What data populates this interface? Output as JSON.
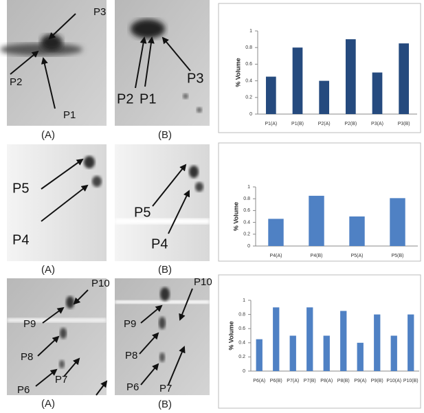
{
  "chart_data": [
    {
      "type": "bar",
      "y_label": "% Volume",
      "categories": [
        "P1(A)",
        "P1(B)",
        "P2(A)",
        "P2(B)",
        "P3(A)",
        "P3(B)"
      ],
      "values": [
        0.45,
        0.8,
        0.4,
        0.9,
        0.5,
        0.85
      ],
      "color": "#254a7e",
      "ylim": [
        0,
        1
      ],
      "yticks": [
        0,
        0.2,
        0.4,
        0.6,
        0.8,
        1
      ]
    },
    {
      "type": "bar",
      "y_label": "% Volume",
      "categories": [
        "P4(A)",
        "P4(B)",
        "P5(A)",
        "P5(B)"
      ],
      "values": [
        0.46,
        0.85,
        0.5,
        0.81
      ],
      "color": "#4f81c4",
      "ylim": [
        0,
        1
      ],
      "yticks": [
        0,
        0.2,
        0.4,
        0.6,
        0.8,
        1
      ]
    },
    {
      "type": "bar",
      "y_label": "% Volume",
      "categories": [
        "P6(A)",
        "P6(B)",
        "P7(A)",
        "P7(B)",
        "P8(A)",
        "P8(B)",
        "P9(A)",
        "P9(B)",
        "P10(A)",
        "P10(B)"
      ],
      "values": [
        0.45,
        0.9,
        0.5,
        0.9,
        0.5,
        0.85,
        0.4,
        0.8,
        0.5,
        0.8
      ],
      "color": "#4f81c4",
      "ylim": [
        0,
        1
      ],
      "yticks": [
        0,
        0.2,
        0.4,
        0.6,
        0.8,
        1
      ]
    }
  ],
  "gels": [
    {
      "labels_a": [
        "P3",
        "P2",
        "P1"
      ],
      "labels_b": [
        "P2",
        "P1",
        "P3"
      ],
      "captions": [
        "(A)",
        "(B)"
      ]
    },
    {
      "labels_a": [
        "P5",
        "P4"
      ],
      "labels_b": [
        "P5",
        "P4"
      ],
      "captions": [
        "(A)",
        "(B)"
      ]
    },
    {
      "labels_a": [
        "P10",
        "P9",
        "P8",
        "P6",
        "P7"
      ],
      "labels_b": [
        "P10",
        "P9",
        "P8",
        "P6",
        "P7"
      ],
      "captions": [
        "(A)",
        "(B)"
      ]
    }
  ]
}
